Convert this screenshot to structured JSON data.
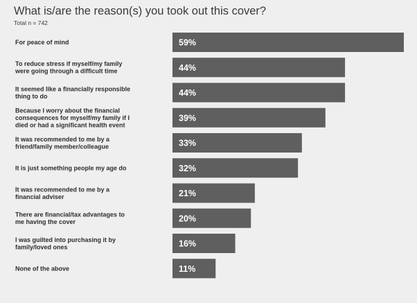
{
  "header": {
    "title": "What is/are the reason(s) you took out this cover?",
    "subtitle": "Total n = 742"
  },
  "colors": {
    "background": "#efefef",
    "bar": "#5f5f5f",
    "value_label": "#ffffff",
    "text": "#2d2d2d"
  },
  "chart_data": {
    "type": "bar",
    "orientation": "horizontal",
    "title": "What is/are the reason(s) you took out this cover?",
    "subtitle": "Total n = 742",
    "categories": [
      [
        "For peace of mind"
      ],
      [
        "To reduce stress if myself/my family",
        "were going through a difficult time"
      ],
      [
        "It seemed like a financially responsible",
        "thing to do"
      ],
      [
        "Because I worry about the financial",
        "consequences for myself/my family if I",
        "died or had a significant health event"
      ],
      [
        "It was recommended to me by a",
        "friend/family member/colleague"
      ],
      [
        "It is just something people my age do"
      ],
      [
        "It was recommended to me by a",
        "financial adviser"
      ],
      [
        "There are financial/tax advantages to",
        "me having the cover"
      ],
      [
        "I was guilted into purchasing it by",
        "family/loved ones"
      ],
      [
        "None of the above"
      ]
    ],
    "values": [
      59,
      44,
      44,
      39,
      33,
      32,
      21,
      20,
      16,
      11
    ],
    "value_labels": [
      "59%",
      "44%",
      "44%",
      "39%",
      "33%",
      "32%",
      "21%",
      "20%",
      "16%",
      "11%"
    ],
    "unit": "%",
    "xlim": [
      0,
      59
    ],
    "grid": false,
    "legend": "none"
  }
}
